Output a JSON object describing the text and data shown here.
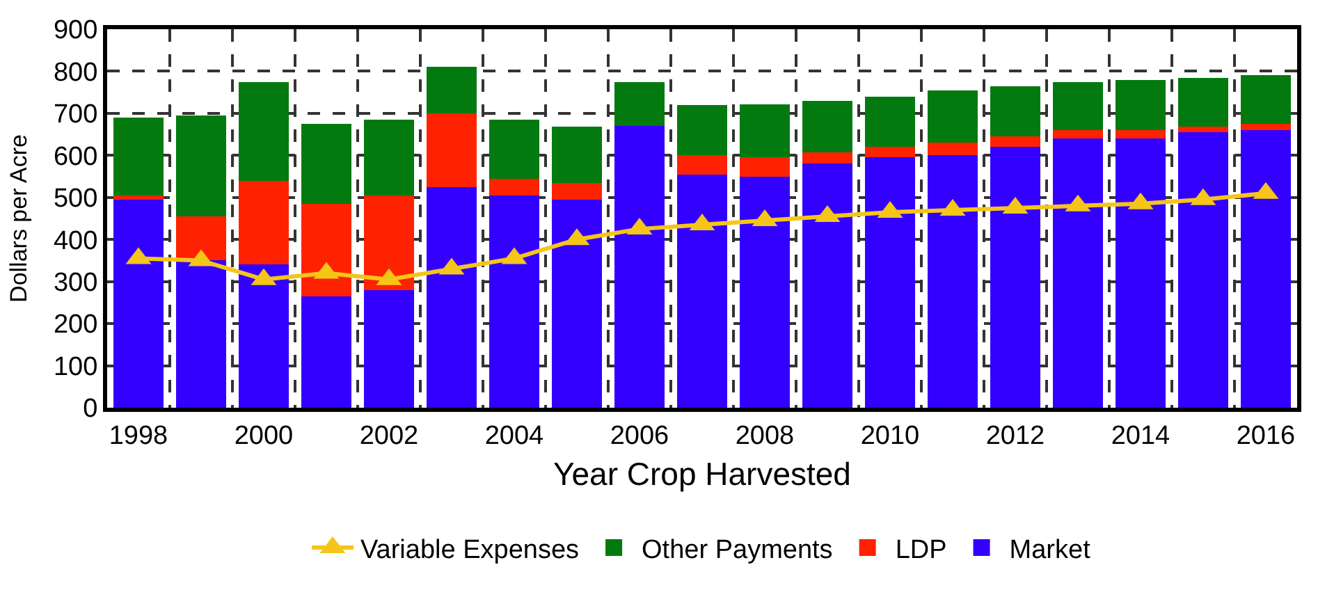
{
  "chart_data": {
    "type": "bar",
    "stacked": true,
    "xlabel": "Year Crop Harvested",
    "ylabel": "Dollars per Acre",
    "x": [
      1998,
      1999,
      2000,
      2001,
      2002,
      2003,
      2004,
      2005,
      2006,
      2007,
      2008,
      2009,
      2010,
      2011,
      2012,
      2013,
      2014,
      2015,
      2016
    ],
    "xlim": [
      1997.5,
      2016.5
    ],
    "xticks": [
      1998,
      2000,
      2002,
      2004,
      2006,
      2008,
      2010,
      2012,
      2014,
      2016
    ],
    "ylim": [
      0,
      900
    ],
    "yticks": [
      0,
      100,
      200,
      300,
      400,
      500,
      600,
      700,
      800,
      900
    ],
    "grid": true,
    "legend": "bottom",
    "series": [
      {
        "name": "Market",
        "color": "#3300ff",
        "values": [
          495,
          350,
          340,
          265,
          280,
          525,
          505,
          495,
          670,
          555,
          550,
          580,
          595,
          600,
          620,
          640,
          640,
          655,
          660
        ]
      },
      {
        "name": "LDP",
        "color": "#ff2200",
        "values": [
          10,
          105,
          200,
          220,
          225,
          175,
          40,
          40,
          0,
          45,
          45,
          28,
          25,
          30,
          25,
          20,
          20,
          13,
          15
        ]
      },
      {
        "name": "Other Payments",
        "color": "#037a0f",
        "values": [
          185,
          240,
          235,
          190,
          180,
          110,
          140,
          133,
          105,
          120,
          127,
          122,
          120,
          125,
          120,
          115,
          120,
          117,
          115
        ]
      },
      {
        "name": "Variable Expenses",
        "type": "line",
        "color": "#f5c518",
        "marker": "triangle",
        "values": [
          355,
          350,
          305,
          320,
          305,
          330,
          355,
          400,
          425,
          435,
          445,
          455,
          465,
          470,
          475,
          480,
          485,
          495,
          510
        ]
      }
    ]
  }
}
